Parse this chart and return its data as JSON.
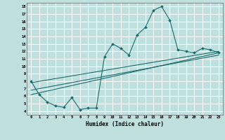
{
  "xlabel": "Humidex (Indice chaleur)",
  "bg_color": "#c0e0e0",
  "line_color": "#1a6b6b",
  "xlim": [
    -0.5,
    23.5
  ],
  "ylim": [
    3.5,
    18.5
  ],
  "xticks": [
    0,
    1,
    2,
    3,
    4,
    5,
    6,
    7,
    8,
    9,
    10,
    11,
    12,
    13,
    14,
    15,
    16,
    17,
    18,
    19,
    20,
    21,
    22,
    23
  ],
  "yticks": [
    4,
    5,
    6,
    7,
    8,
    9,
    10,
    11,
    12,
    13,
    14,
    15,
    16,
    17,
    18
  ],
  "main_x": [
    0,
    1,
    2,
    3,
    4,
    5,
    6,
    7,
    8,
    9,
    10,
    11,
    12,
    13,
    14,
    15,
    16,
    17,
    18,
    19,
    20,
    21,
    22,
    23
  ],
  "main_y": [
    8.0,
    6.2,
    5.2,
    4.7,
    4.5,
    5.8,
    4.2,
    4.4,
    4.4,
    11.3,
    13.0,
    12.4,
    11.5,
    14.2,
    15.2,
    17.5,
    18.0,
    16.2,
    12.2,
    12.0,
    11.8,
    12.4,
    12.2,
    11.8
  ],
  "trend1_x": [
    0,
    23
  ],
  "trend1_y": [
    7.8,
    12.0
  ],
  "trend2_x": [
    0,
    23
  ],
  "trend2_y": [
    6.8,
    11.5
  ],
  "trend3_x": [
    0,
    23
  ],
  "trend3_y": [
    6.2,
    11.8
  ]
}
